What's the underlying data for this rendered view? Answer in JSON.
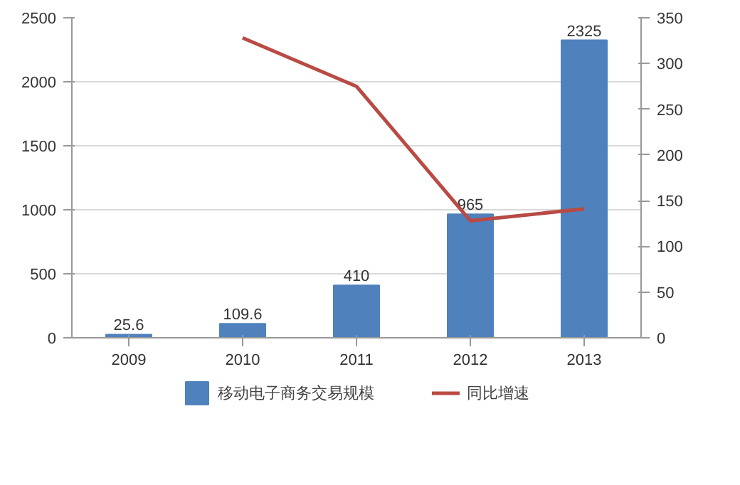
{
  "chart_data": {
    "type": "bar",
    "categories": [
      "2009",
      "2010",
      "2011",
      "2012",
      "2013"
    ],
    "series": [
      {
        "name": "移动电子商务交易规模",
        "color": "#4f81bd",
        "values": [
          25.6,
          109.6,
          410,
          965,
          2325
        ],
        "value_labels": [
          "25.6",
          "109.6",
          "410",
          "965",
          "2325"
        ]
      },
      {
        "name": "同比增速",
        "color": "#b94a44",
        "values": [
          null,
          328,
          275,
          128,
          141
        ],
        "type": "line",
        "axis": "y2"
      }
    ],
    "ylim": [
      0,
      2500
    ],
    "yticks": [
      0,
      500,
      1000,
      1500,
      2000,
      2500
    ],
    "y2lim": [
      0,
      350
    ],
    "y2ticks": [
      0,
      50,
      100,
      150,
      200,
      250,
      300,
      350
    ],
    "grid": "y",
    "legend": "bottom"
  }
}
